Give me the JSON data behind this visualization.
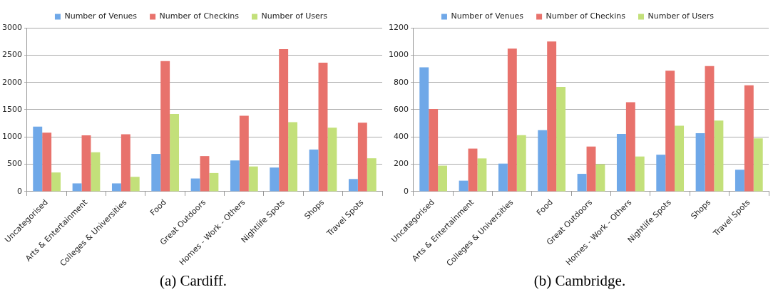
{
  "chart_data": [
    {
      "type": "bar",
      "title": "(a) Cardiff.",
      "categories": [
        "Uncategorised",
        "Arts & Entertainment",
        "Colleges & Universities",
        "Food",
        "Great Outdoors",
        "Homes - Work - Others",
        "Nightlife Spots",
        "Shops",
        "Travel Spots"
      ],
      "series": [
        {
          "name": "Number of Venues",
          "color": "#6fa8e8",
          "values": [
            1190,
            150,
            150,
            690,
            240,
            570,
            440,
            770,
            230
          ]
        },
        {
          "name": "Number of Checkins",
          "color": "#e8726c",
          "values": [
            1080,
            1030,
            1050,
            2390,
            650,
            1390,
            2610,
            2360,
            1260
          ]
        },
        {
          "name": "Number of Users",
          "color": "#c3e07a",
          "values": [
            350,
            720,
            270,
            1420,
            340,
            460,
            1270,
            1170,
            610
          ]
        }
      ],
      "ylim": [
        0,
        3000
      ],
      "yticks": [
        0,
        500,
        1000,
        1500,
        2000,
        2500,
        3000
      ],
      "grid": "y",
      "legend": "top"
    },
    {
      "type": "bar",
      "title": "(b) Cambridge.",
      "categories": [
        "Uncategorised",
        "Arts & Entertainment",
        "Colleges & Universities",
        "Food",
        "Great Outdoors",
        "Homes - Work - Others",
        "Nightlife Spots",
        "Shops",
        "Travel Spots"
      ],
      "series": [
        {
          "name": "Number of Venues",
          "color": "#6fa8e8",
          "values": [
            910,
            80,
            205,
            450,
            130,
            422,
            270,
            428,
            160
          ]
        },
        {
          "name": "Number of Checkins",
          "color": "#e8726c",
          "values": [
            605,
            315,
            1048,
            1100,
            330,
            655,
            885,
            920,
            778
          ]
        },
        {
          "name": "Number of Users",
          "color": "#c3e07a",
          "values": [
            190,
            243,
            413,
            767,
            200,
            257,
            482,
            520,
            390
          ]
        }
      ],
      "ylim": [
        0,
        1200
      ],
      "yticks": [
        0,
        200,
        400,
        600,
        800,
        1000,
        1200
      ],
      "grid": "y",
      "legend": "top"
    }
  ]
}
